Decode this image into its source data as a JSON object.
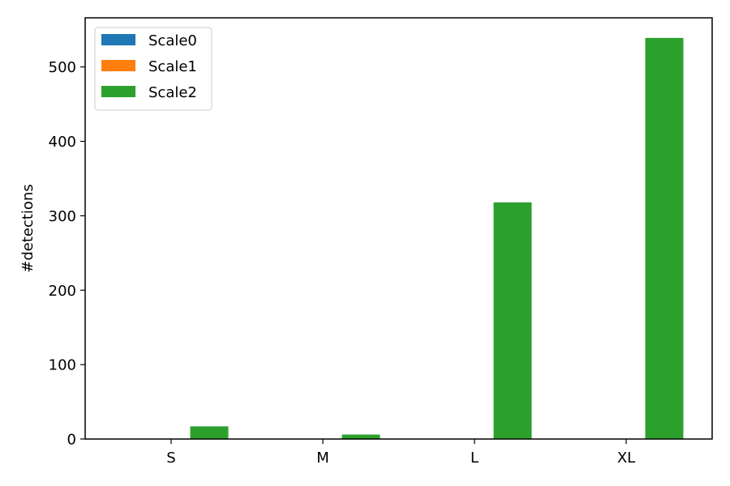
{
  "chart_data": {
    "type": "bar",
    "title": "",
    "xlabel": "",
    "ylabel": "#detections",
    "categories": [
      "S",
      "M",
      "L",
      "XL"
    ],
    "series": [
      {
        "name": "Scale0",
        "color": "#1f77b4",
        "values": [
          0,
          0,
          0,
          0
        ]
      },
      {
        "name": "Scale1",
        "color": "#ff7f0e",
        "values": [
          0,
          0,
          0,
          0
        ]
      },
      {
        "name": "Scale2",
        "color": "#2ca02c",
        "values": [
          17,
          6,
          318,
          539
        ]
      }
    ],
    "ylim": [
      0,
      566
    ],
    "yticks": [
      0,
      100,
      200,
      300,
      400,
      500
    ],
    "grid": false,
    "legend_position": "top-left"
  }
}
